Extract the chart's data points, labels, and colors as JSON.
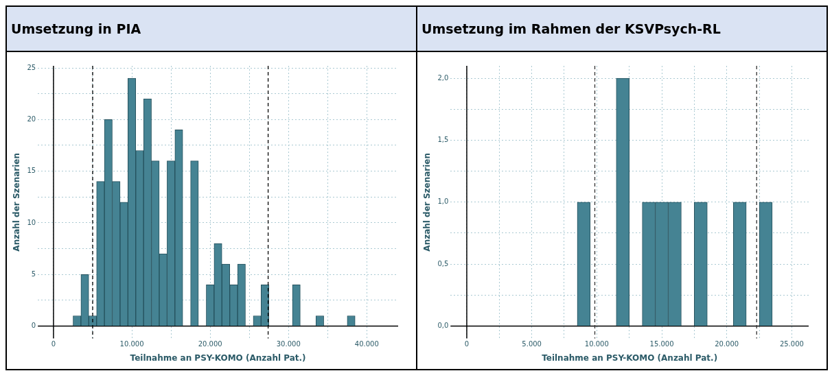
{
  "chart_data": [
    {
      "type": "histogram",
      "title": "Umsetzung in PIA",
      "xlabel": "Teilnahme an PSY-KOMO (Anzahl Pat.)",
      "ylabel": "Anzahl der Szenarien",
      "color": "#458393",
      "bins": [
        2500,
        3500,
        4500,
        5500,
        6500,
        7500,
        8500,
        9500,
        10500,
        11500,
        12500,
        13500,
        14500,
        15500,
        16500,
        17500,
        18500,
        19500,
        20500,
        21500,
        22500,
        23500,
        24500,
        25500,
        26500,
        27500,
        28500,
        29500,
        30500,
        31500,
        32500,
        33500,
        34500,
        35500,
        36500,
        37500,
        38500
      ],
      "values": [
        1,
        5,
        1,
        14,
        20,
        14,
        12,
        24,
        17,
        22,
        16,
        7,
        16,
        19,
        0,
        16,
        0,
        4,
        8,
        6,
        4,
        6,
        0,
        1,
        4,
        0,
        0,
        0,
        4,
        0,
        0,
        1,
        0,
        0,
        0,
        1
      ],
      "xlim": [
        -2000,
        44000
      ],
      "ylim": [
        -1.2,
        25.2
      ],
      "xticks": [
        0,
        {
          "value": 5000,
          "label": null
        },
        {
          "value": 10000,
          "label": "10.000"
        },
        {
          "value": 15000,
          "label": null
        },
        {
          "value": 20000,
          "label": "20.000"
        },
        {
          "value": 25000,
          "label": null
        },
        {
          "value": 30000,
          "label": "30.000"
        },
        {
          "value": 35000,
          "label": null
        },
        {
          "value": 40000,
          "label": "40.000"
        }
      ],
      "yticks": [
        0,
        {
          "value": 2.5,
          "label": null
        },
        5,
        {
          "value": 7.5,
          "label": null
        },
        10,
        {
          "value": 12.5,
          "label": null
        },
        15,
        {
          "value": 17.5,
          "label": null
        },
        20,
        {
          "value": 22.5,
          "label": null
        },
        25
      ],
      "grid": true,
      "ref_lines": [
        {
          "axis": "x",
          "value": 5000,
          "color": "#000000",
          "line_style": "dashed"
        },
        {
          "axis": "x",
          "value": 27400,
          "color": "#000000",
          "line_style": "dashed"
        }
      ]
    },
    {
      "type": "histogram",
      "title": "Umsetzung im Rahmen der KSVPsych-RL",
      "xlabel": "Teilnahme an PSY-KOMO (Anzahl Pat.)",
      "ylabel": "Anzahl der Szenarien",
      "color": "#458393",
      "bins": [
        8500,
        9500,
        10500,
        11500,
        12500,
        13500,
        14500,
        15500,
        16500,
        17500,
        18500,
        19500,
        20500,
        21500,
        22500,
        23500
      ],
      "values": [
        1,
        0,
        0,
        2,
        0,
        1,
        1,
        1,
        0,
        1,
        0,
        0,
        1,
        0,
        1
      ],
      "xlim": [
        -1250,
        26300
      ],
      "ylim": [
        -0.1,
        2.1
      ],
      "xticks": [
        0,
        {
          "value": 2500,
          "label": null
        },
        {
          "value": 5000,
          "label": "5.000"
        },
        {
          "value": 7500,
          "label": null
        },
        {
          "value": 10000,
          "label": "10.000"
        },
        {
          "value": 12500,
          "label": null
        },
        {
          "value": 15000,
          "label": "15.000"
        },
        {
          "value": 17500,
          "label": null
        },
        {
          "value": 20000,
          "label": "20.000"
        },
        {
          "value": 22500,
          "label": null
        },
        {
          "value": 25000,
          "label": "25.000"
        }
      ],
      "yticks": [
        {
          "value": 0,
          "label": "0,0"
        },
        {
          "value": 0.25,
          "label": null
        },
        {
          "value": 0.5,
          "label": "0,5"
        },
        {
          "value": 0.75,
          "label": null
        },
        {
          "value": 1,
          "label": "1,0"
        },
        {
          "value": 1.25,
          "label": null
        },
        {
          "value": 1.5,
          "label": "1,5"
        },
        {
          "value": 1.75,
          "label": null
        },
        {
          "value": 2,
          "label": "2,0"
        }
      ],
      "grid": true,
      "ref_lines": [
        {
          "axis": "x",
          "value": 9850,
          "color": "#333333",
          "line_style": "dashed"
        },
        {
          "axis": "x",
          "value": 22300,
          "color": "#333333",
          "line_style": "dashed"
        }
      ]
    }
  ]
}
